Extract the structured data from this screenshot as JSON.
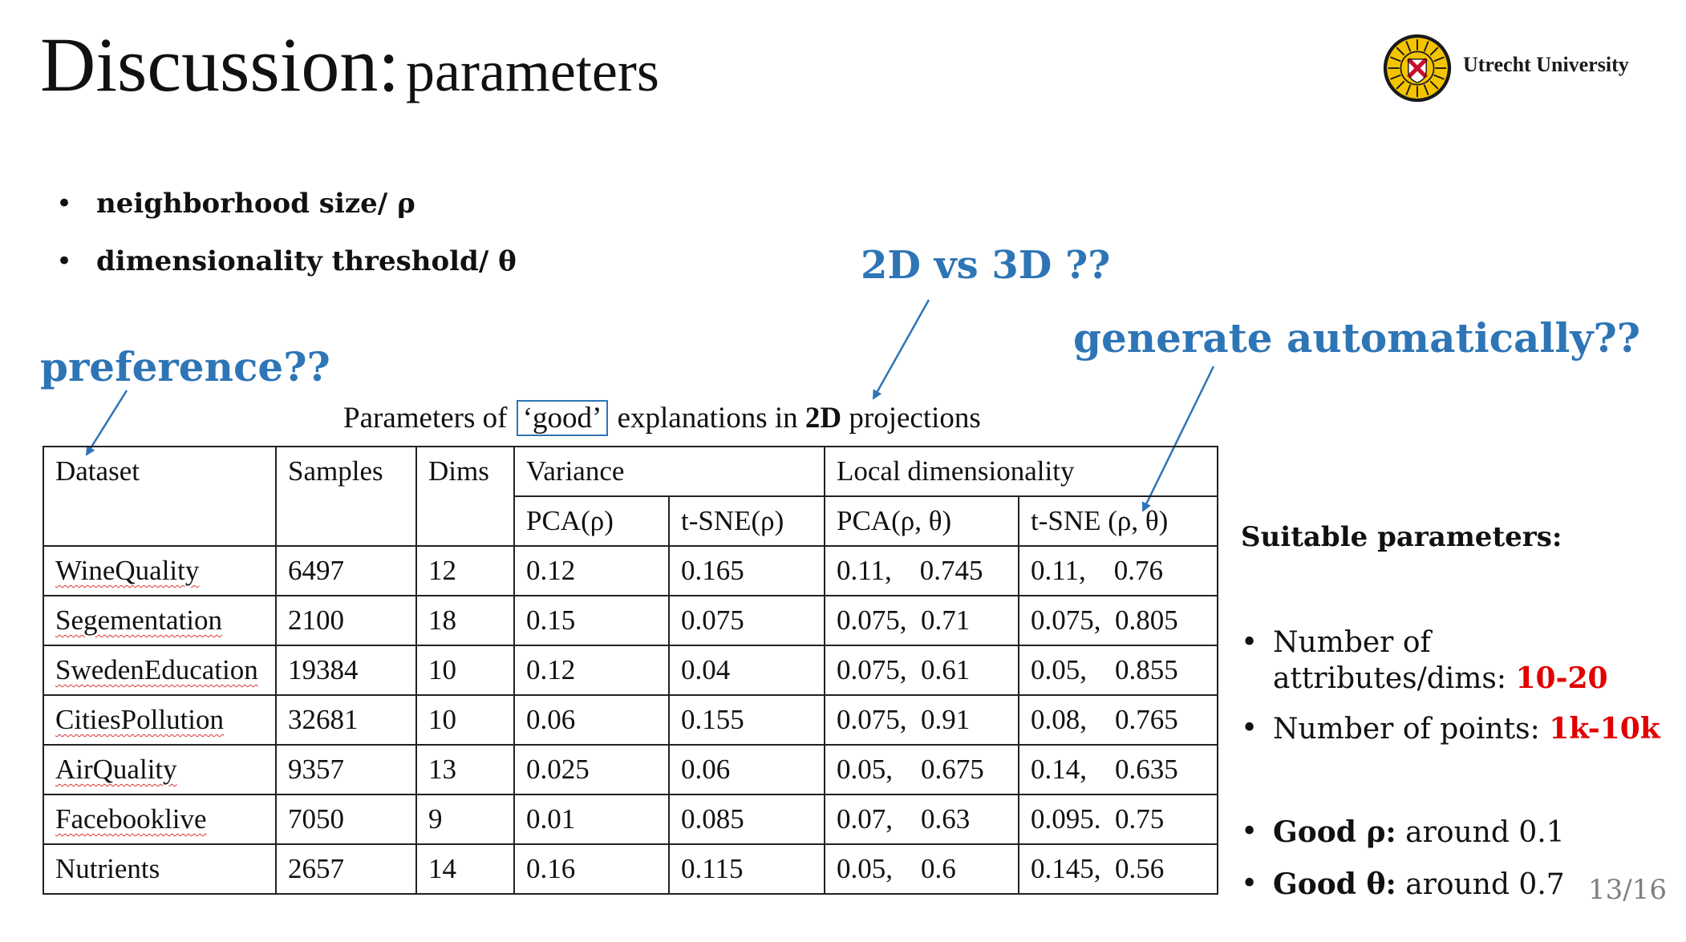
{
  "title": {
    "main": "Discussion:",
    "sub": "parameters"
  },
  "logo": {
    "text": "Utrecht University",
    "seal_color": "#f4c400",
    "shield_color": "#c8102e"
  },
  "bullets": [
    "neighborhood size/ ρ",
    "dimensionality threshold/ θ"
  ],
  "annotations": {
    "preference": "preference??",
    "dims": "2D vs 3D ??",
    "auto": "generate automatically??",
    "color": "#2e75b6"
  },
  "caption": {
    "pre": "Parameters of",
    "boxed": "‘good’",
    "mid": "explanations in",
    "bold": "2D",
    "post": "projections"
  },
  "table": {
    "headers": {
      "dataset": "Dataset",
      "samples": "Samples",
      "dims": "Dims",
      "variance": "Variance",
      "local": "Local dimensionality",
      "var_pca": "PCA(ρ)",
      "var_tsne": "t-SNE(ρ)",
      "loc_pca": "PCA(ρ, θ)",
      "loc_tsne": "t-SNE (ρ, θ)"
    },
    "rows": [
      [
        "WineQuality",
        "6497",
        "12",
        "0.12",
        "0.165",
        "0.11,    0.745",
        "0.11,    0.76"
      ],
      [
        "Segementation",
        "2100",
        "18",
        "0.15",
        "0.075",
        "0.075,  0.71",
        "0.075,  0.805"
      ],
      [
        "SwedenEducation",
        "19384",
        "10",
        "0.12",
        "0.04",
        "0.075,  0.61",
        "0.05,    0.855"
      ],
      [
        "CitiesPollution",
        "32681",
        "10",
        "0.06",
        "0.155",
        "0.075,  0.91",
        "0.08,    0.765"
      ],
      [
        "AirQuality",
        "9357",
        "13",
        "0.025",
        "0.06",
        "0.05,    0.675",
        "0.14,    0.635"
      ],
      [
        "Facebooklive",
        "7050",
        "9",
        "0.01",
        "0.085",
        "0.07,    0.63",
        "0.095.  0.75"
      ],
      [
        "Nutrients",
        "2657",
        "14",
        "0.16",
        "0.115",
        "0.05,    0.6",
        "0.145,  0.56"
      ]
    ]
  },
  "suitable": {
    "heading": "Suitable parameters:",
    "attrs_label_1": "Number of",
    "attrs_label_2": "attributes/dims: ",
    "attrs_value": "10-20",
    "points_label": "Number of points: ",
    "points_value": "1k-10k",
    "rho_label": "Good ρ:",
    "rho_value": " around 0.1",
    "theta_label": "Good θ:",
    "theta_value": " around 0.7",
    "highlight_color": "#e00000"
  },
  "page": "13/16"
}
